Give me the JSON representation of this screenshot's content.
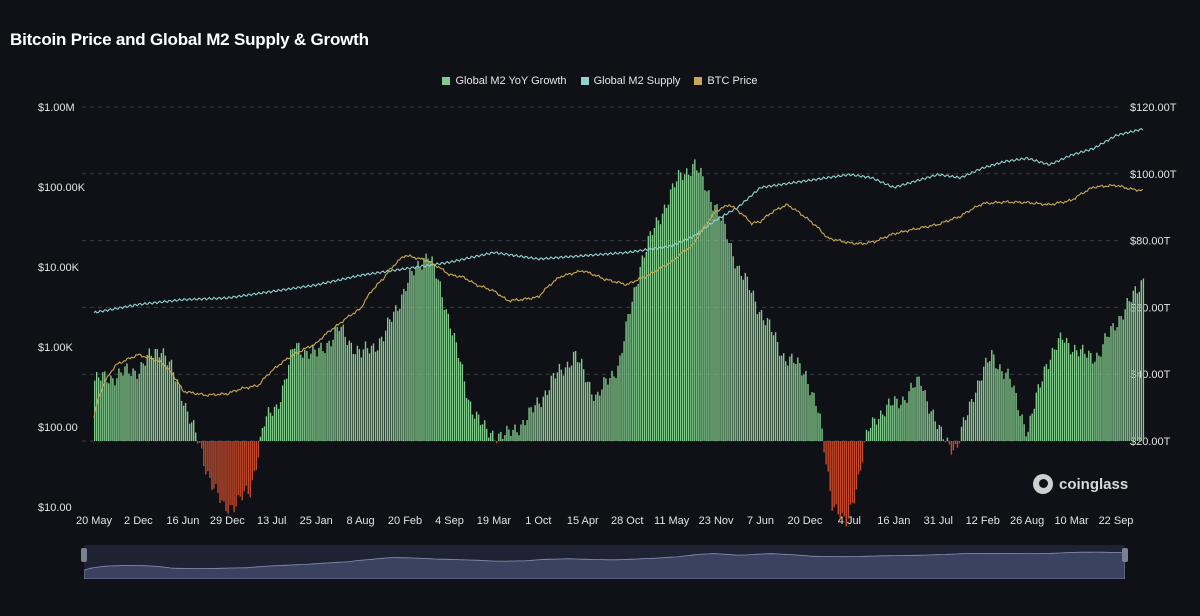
{
  "title": "Bitcoin Price and Global M2 Supply & Growth",
  "legend": [
    {
      "label": "Global M2 YoY Growth",
      "color": "#82c98c"
    },
    {
      "label": "Global M2 Supply",
      "color": "#8fd2cf"
    },
    {
      "label": "BTC Price",
      "color": "#c9a752"
    }
  ],
  "brand": "coinglass",
  "colors": {
    "background": "#0f1116",
    "growth_positive": "#82c98c",
    "growth_negative": "#c44a2d",
    "m2_line": "#8fd2cf",
    "btc_line": "#c9a752",
    "navigator": "#3a4260"
  },
  "chart_data": {
    "type": "line",
    "x_ticks": [
      "20 May",
      "2 Dec",
      "16 Jun",
      "29 Dec",
      "13 Jul",
      "25 Jan",
      "8 Aug",
      "20 Feb",
      "4 Sep",
      "19 Mar",
      "1 Oct",
      "15 Apr",
      "28 Oct",
      "11 May",
      "23 Nov",
      "7 Jun",
      "20 Dec",
      "4 Jul",
      "16 Jan",
      "31 Jul",
      "12 Feb",
      "26 Aug",
      "10 Mar",
      "22 Sep"
    ],
    "y_left": {
      "scale": "log",
      "ticks": [
        "$10.00",
        "$100.00",
        "$1.00K",
        "$10.00K",
        "$100.00K",
        "$1.00M"
      ],
      "range": [
        10,
        1000000
      ]
    },
    "y_right": {
      "scale": "linear",
      "ticks": [
        "$20.00T",
        "$40.00T",
        "$60.00T",
        "$80.00T",
        "$100.00T",
        "$120.00T"
      ],
      "range": [
        20,
        120
      ]
    },
    "grid": "horizontal dashed",
    "legend_position": "top-center",
    "series": [
      {
        "name": "BTC Price",
        "axis": "left",
        "x": [
          0,
          0.5,
          1,
          1.5,
          2,
          2.5,
          3,
          3.3,
          3.7,
          4,
          4.5,
          5,
          5.5,
          6,
          6.5,
          7,
          7.5,
          8,
          8.3,
          8.6,
          9,
          9.3,
          9.6,
          10,
          10.5,
          11,
          11.5,
          12,
          12.5,
          13,
          13.5,
          13.8,
          14,
          14.3,
          14.6,
          14.8,
          15,
          15.3,
          15.6,
          16,
          16.5,
          17,
          17.3,
          17.6,
          18,
          18.5,
          19,
          19.5,
          20,
          20.5,
          21,
          21.5,
          22,
          22.5,
          23,
          23.3,
          23.6
        ],
        "values": [
          130,
          600,
          800,
          650,
          280,
          250,
          260,
          300,
          330,
          500,
          800,
          1100,
          1900,
          3000,
          7000,
          14000,
          12000,
          8000,
          7500,
          6000,
          5000,
          3800,
          3900,
          4200,
          7600,
          9000,
          7000,
          6000,
          8000,
          11500,
          19000,
          35000,
          50000,
          60000,
          45000,
          35000,
          37000,
          50000,
          60000,
          42000,
          23000,
          20000,
          19500,
          21000,
          26000,
          30000,
          34000,
          43000,
          62000,
          65000,
          64000,
          60000,
          68000,
          100000,
          105000,
          95000,
          90000
        ]
      },
      {
        "name": "Global M2 Supply",
        "axis": "right",
        "x": [
          0,
          1,
          2,
          3,
          4,
          5,
          6,
          7,
          8,
          9,
          10,
          11,
          12,
          13,
          13.5,
          14,
          14.5,
          15,
          15.5,
          16,
          16.5,
          17,
          17.5,
          18,
          19,
          19.5,
          20,
          20.5,
          21,
          21.5,
          22,
          22.5,
          23,
          23.6
        ],
        "values": [
          59.5,
          62,
          63.5,
          64,
          66,
          68,
          71,
          73,
          75,
          78,
          76,
          77,
          78,
          80,
          83,
          88,
          92,
          98,
          99,
          100,
          101,
          102,
          101,
          98,
          102,
          101,
          104,
          106,
          107,
          105,
          108,
          110,
          114,
          116
        ]
      },
      {
        "name": "Global M2 YoY Growth",
        "axis": "hidden",
        "x": [
          0,
          0.5,
          1,
          1.5,
          2,
          2.5,
          2.9,
          3.2,
          3.5,
          3.8,
          4.1,
          4.5,
          5,
          5.5,
          6,
          6.5,
          7,
          7.5,
          8,
          8.4,
          8.8,
          9.3,
          9.8,
          10.3,
          10.8,
          11.3,
          11.8,
          12.3,
          12.8,
          13.2,
          13.5,
          14,
          14.5,
          15,
          15.5,
          16,
          16.3,
          16.6,
          16.9,
          17.2,
          17.4,
          17.6,
          17.9,
          18.2,
          18.6,
          19,
          19.4,
          19.8,
          20.2,
          20.6,
          21,
          21.4,
          21.8,
          22.2,
          22.6,
          23,
          23.3,
          23.6
        ],
        "values": [
          3.5,
          3.8,
          4.2,
          5.5,
          2.5,
          -1.5,
          -4,
          -3.5,
          -3,
          1,
          2,
          5.5,
          5,
          6.5,
          5,
          6,
          9,
          11,
          7,
          2.5,
          0.5,
          0.3,
          1.5,
          3.5,
          5,
          2.5,
          4.5,
          10.5,
          13.5,
          15.5,
          16,
          13.5,
          10,
          7.5,
          5,
          4,
          1.5,
          -3.5,
          -5,
          -2,
          0.5,
          1.5,
          2,
          2.5,
          3.5,
          0.5,
          -0.5,
          3,
          5,
          3.5,
          0.5,
          4.5,
          6,
          5,
          5,
          7,
          8,
          9.5
        ]
      }
    ]
  }
}
